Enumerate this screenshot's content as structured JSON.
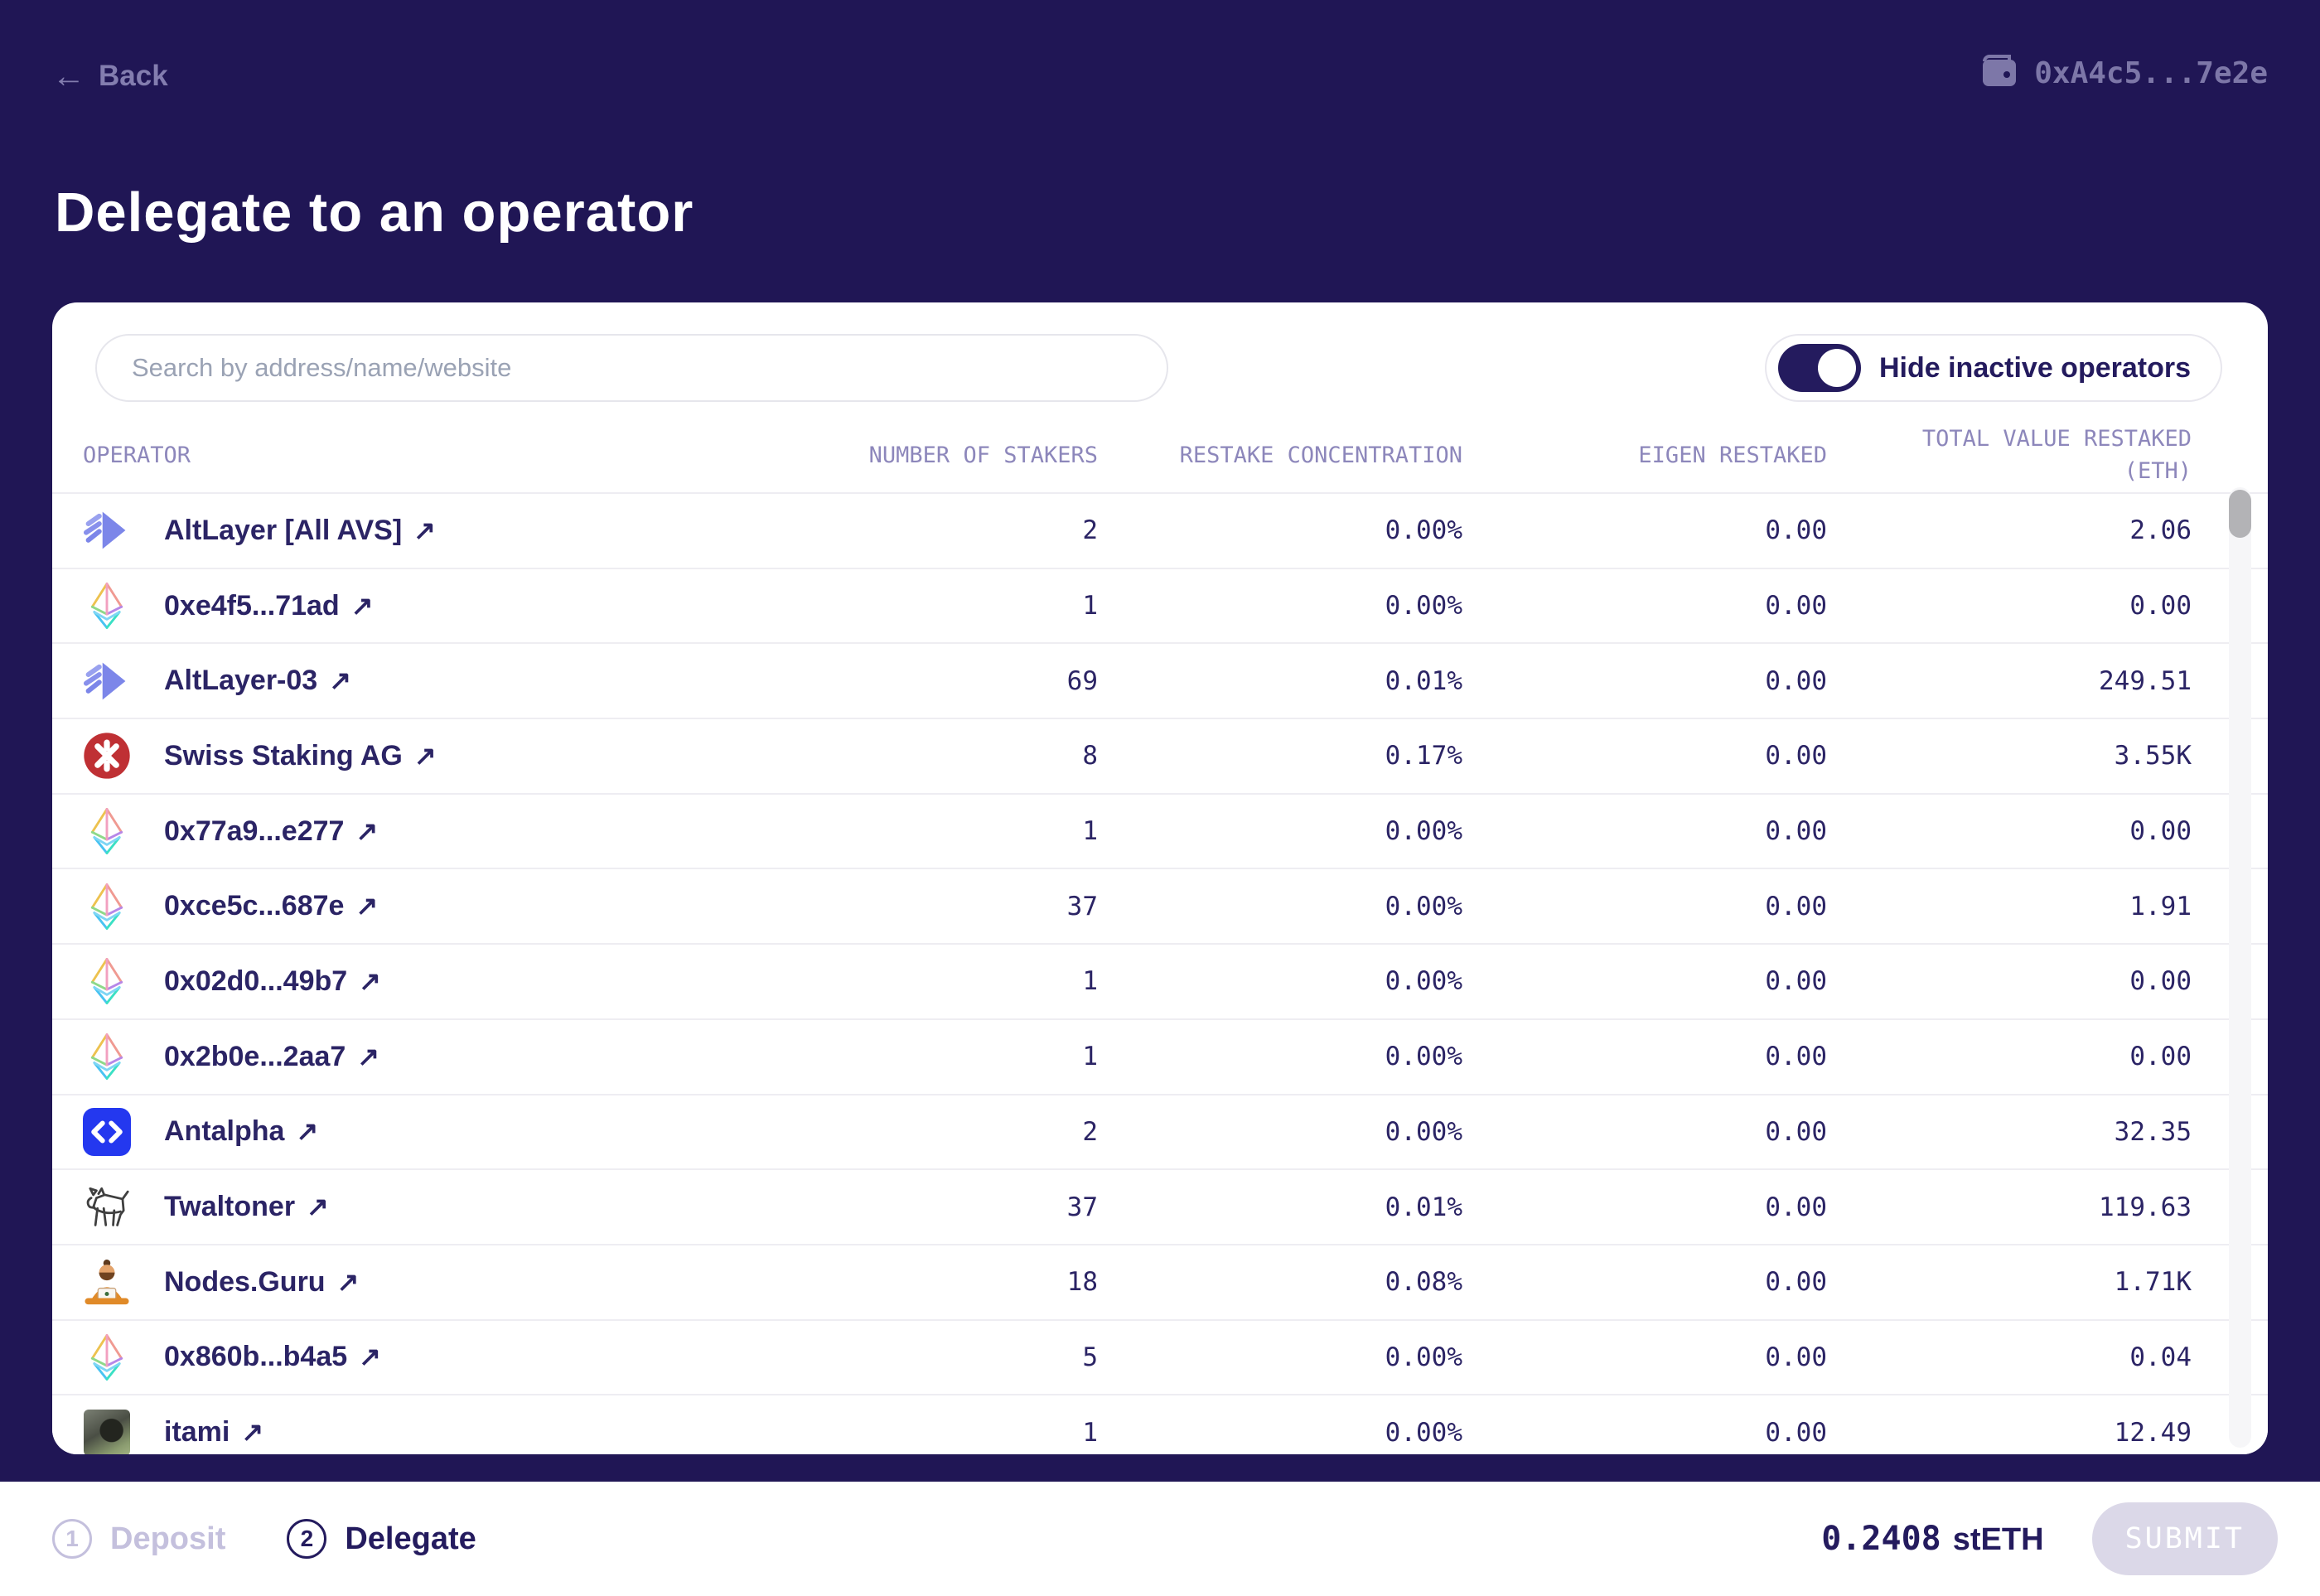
{
  "colors": {
    "background": "#201655",
    "card": "#ffffff",
    "primary_text": "#2b2465",
    "muted_text": "#837daf",
    "column_header_text": "#8d87bb",
    "toggle_on": "#241b5e",
    "antalpha_brand": "#2438ef",
    "swiss_staking_brand": "#bf3034",
    "altlayer_brand": "#7c86e9",
    "submit_disabled_bg": "#dbd8e8"
  },
  "icons": {
    "back_arrow": "←",
    "external_link": "↗",
    "wallet": "wallet-icon"
  },
  "header": {
    "back_label": "Back",
    "wallet_address": "0xA4c5...7e2e"
  },
  "page_title": "Delegate to an operator",
  "panel": {
    "search_placeholder": "Search by address/name/website",
    "search_value": "",
    "toggle_label": "Hide inactive operators",
    "toggle_on": true
  },
  "table": {
    "columns": {
      "operator": "OPERATOR",
      "stakers": "NUMBER OF STAKERS",
      "concentration": "RESTAKE CONCENTRATION",
      "eigen": "EIGEN RESTAKED",
      "total": "TOTAL VALUE RESTAKED (ETH)"
    },
    "rows": [
      {
        "name": "AltLayer [All AVS]",
        "icon": "altlayer",
        "stakers": "2",
        "concentration": "0.00%",
        "eigen": "0.00",
        "total": "2.06"
      },
      {
        "name": "0xe4f5...71ad",
        "icon": "eth",
        "stakers": "1",
        "concentration": "0.00%",
        "eigen": "0.00",
        "total": "0.00"
      },
      {
        "name": "AltLayer-03",
        "icon": "altlayer",
        "stakers": "69",
        "concentration": "0.01%",
        "eigen": "0.00",
        "total": "249.51"
      },
      {
        "name": "Swiss Staking AG",
        "icon": "swiss-staking",
        "stakers": "8",
        "concentration": "0.17%",
        "eigen": "0.00",
        "total": "3.55K"
      },
      {
        "name": "0x77a9...e277",
        "icon": "eth",
        "stakers": "1",
        "concentration": "0.00%",
        "eigen": "0.00",
        "total": "0.00"
      },
      {
        "name": "0xce5c...687e",
        "icon": "eth",
        "stakers": "37",
        "concentration": "0.00%",
        "eigen": "0.00",
        "total": "1.91"
      },
      {
        "name": "0x02d0...49b7",
        "icon": "eth",
        "stakers": "1",
        "concentration": "0.00%",
        "eigen": "0.00",
        "total": "0.00"
      },
      {
        "name": "0x2b0e...2aa7",
        "icon": "eth",
        "stakers": "1",
        "concentration": "0.00%",
        "eigen": "0.00",
        "total": "0.00"
      },
      {
        "name": "Antalpha",
        "icon": "antalpha",
        "stakers": "2",
        "concentration": "0.00%",
        "eigen": "0.00",
        "total": "32.35"
      },
      {
        "name": "Twaltoner",
        "icon": "twaltoner",
        "stakers": "37",
        "concentration": "0.01%",
        "eigen": "0.00",
        "total": "119.63"
      },
      {
        "name": "Nodes.Guru",
        "icon": "nodes-guru",
        "stakers": "18",
        "concentration": "0.08%",
        "eigen": "0.00",
        "total": "1.71K"
      },
      {
        "name": "0x860b...b4a5",
        "icon": "eth",
        "stakers": "5",
        "concentration": "0.00%",
        "eigen": "0.00",
        "total": "0.04"
      },
      {
        "name": "itami",
        "icon": "itami",
        "stakers": "1",
        "concentration": "0.00%",
        "eigen": "0.00",
        "total": "12.49"
      }
    ]
  },
  "footer": {
    "steps": [
      {
        "number": "1",
        "label": "Deposit",
        "active": false
      },
      {
        "number": "2",
        "label": "Delegate",
        "active": true
      }
    ],
    "amount_value": "0.2408",
    "amount_unit": "stETH",
    "submit_label": "SUBMIT"
  }
}
